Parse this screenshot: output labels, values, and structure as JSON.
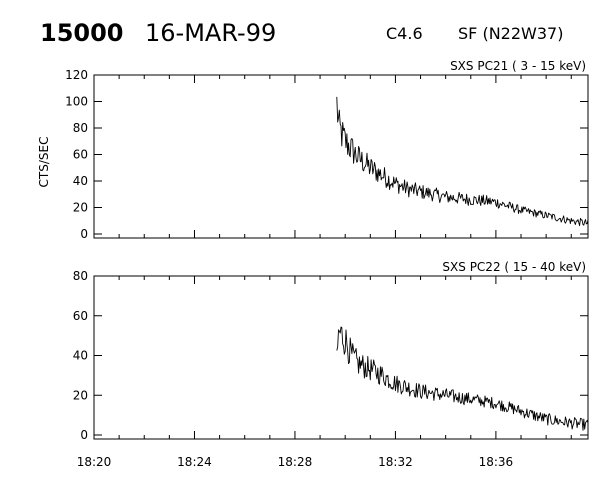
{
  "header": {
    "event_id": "15000",
    "date": "16-MAR-99",
    "goes_class": "C4.6",
    "optical": "SF (N22W37)"
  },
  "chart_data": [
    {
      "type": "line",
      "channel_label": "SXS PC21  (  3 - 15 keV)",
      "ylabel": "CTS/SEC",
      "ylim": [
        0,
        120
      ],
      "y_ticks": [
        "0",
        "20",
        "40",
        "60",
        "80",
        "100",
        "120"
      ],
      "xlim": [
        "18:20",
        "18:39:40"
      ],
      "x_ticks": [
        "18:20",
        "18:24",
        "18:28",
        "18:32",
        "18:36"
      ],
      "series": [
        {
          "x": [
            "18:29:40",
            "18:29:45",
            "18:30:00",
            "18:30:30",
            "18:31:00",
            "18:31:30",
            "18:32:00",
            "18:32:30",
            "18:33:00",
            "18:34:00",
            "18:35:00",
            "18:36:00",
            "18:37:00",
            "18:38:00",
            "18:39:00",
            "18:39:40"
          ],
          "y": [
            98,
            80,
            70,
            58,
            50,
            44,
            38,
            34,
            32,
            28,
            26,
            24,
            18,
            14,
            10,
            8
          ]
        }
      ]
    },
    {
      "type": "line",
      "channel_label": "SXS PC22  ( 15 - 40 keV)",
      "ylabel": "",
      "ylim": [
        0,
        80
      ],
      "y_ticks": [
        "0",
        "20",
        "40",
        "60",
        "80"
      ],
      "xlim": [
        "18:20",
        "18:39:40"
      ],
      "x_ticks": [
        "18:20",
        "18:24",
        "18:28",
        "18:32",
        "18:36"
      ],
      "series": [
        {
          "x": [
            "18:29:40",
            "18:29:45",
            "18:30:00",
            "18:30:15",
            "18:30:30",
            "18:31:00",
            "18:31:30",
            "18:32:00",
            "18:32:30",
            "18:33:00",
            "18:34:00",
            "18:35:00",
            "18:36:00",
            "18:37:00",
            "18:38:00",
            "18:39:00",
            "18:39:40"
          ],
          "y": [
            40,
            52,
            48,
            40,
            36,
            33,
            30,
            26,
            24,
            22,
            20,
            18,
            16,
            12,
            8,
            6,
            5
          ]
        }
      ]
    }
  ]
}
